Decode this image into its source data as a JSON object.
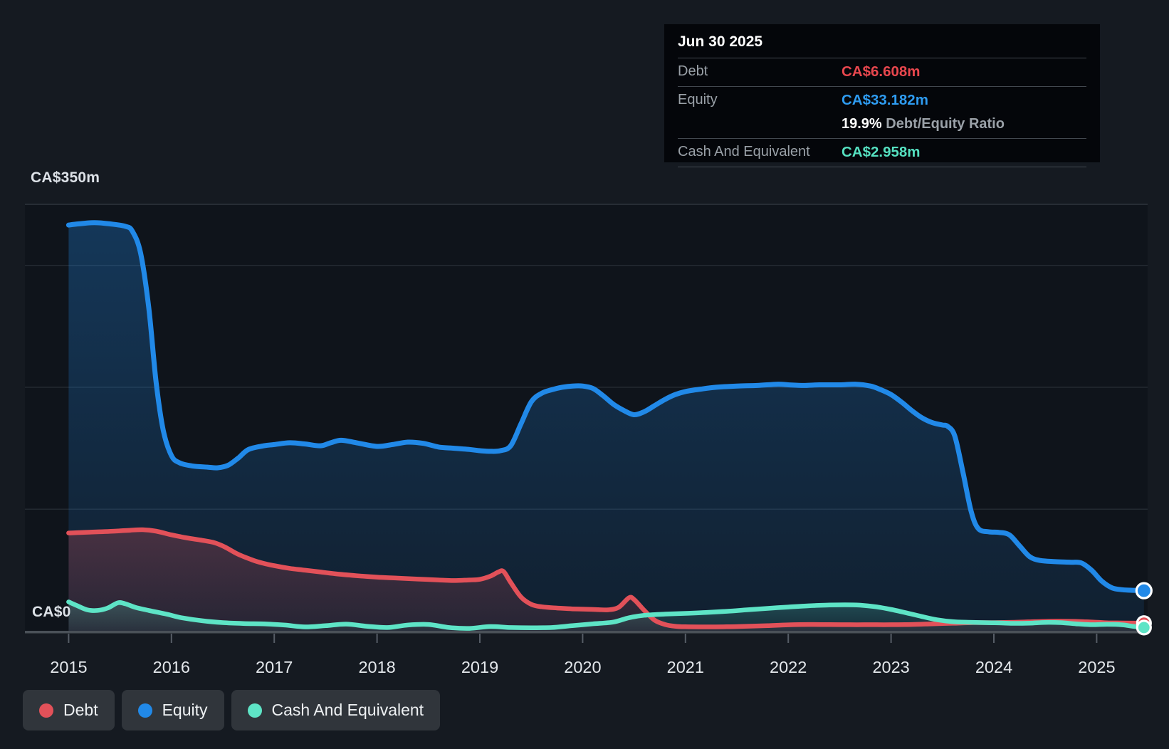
{
  "y_axis": {
    "top_label": "CA$350m",
    "zero_label": "CA$0"
  },
  "x_axis": {
    "years": [
      "2015",
      "2016",
      "2017",
      "2018",
      "2019",
      "2020",
      "2021",
      "2022",
      "2023",
      "2024",
      "2025"
    ]
  },
  "tooltip": {
    "title": "Jun 30 2025",
    "rows": [
      {
        "key": "debt",
        "label": "Debt",
        "value": "CA$6.608m"
      },
      {
        "key": "equity",
        "label": "Equity",
        "value": "CA$33.182m"
      },
      {
        "key": "cash",
        "label": "Cash And Equivalent",
        "value": "CA$2.958m"
      }
    ],
    "ratio_pct": "19.9%",
    "ratio_label": "Debt/Equity Ratio"
  },
  "legend": [
    {
      "key": "debt",
      "label": "Debt",
      "color": "#e25159"
    },
    {
      "key": "equity",
      "label": "Equity",
      "color": "#2189e8"
    },
    {
      "key": "cash",
      "label": "Cash And Equivalent",
      "color": "#5ee4c6"
    }
  ],
  "colors": {
    "page_bg": "#151a21",
    "plot_bg": "#0f141b",
    "gridline": "#262c34",
    "top_gridline": "#2e343d",
    "axis_bar": "#4a5158",
    "tick": "#565d66",
    "year_label": "#e3e7eb",
    "debt_line": "#e25159",
    "equity_line": "#2189e8",
    "cash_line": "#5ee4c6",
    "tooltip_debt": "#e8474e",
    "tooltip_equity": "#2e9bf0",
    "tooltip_cash": "#55e0c0"
  },
  "chart_data": {
    "type": "area",
    "title": "",
    "xlabel": "",
    "ylabel": "CA$ (millions)",
    "xlim": [
      2015,
      2025.6
    ],
    "ylim": [
      0,
      350
    ],
    "gridline_values": [
      0,
      100,
      200,
      300,
      350
    ],
    "x_tick_years": [
      2015,
      2016,
      2017,
      2018,
      2019,
      2020,
      2021,
      2022,
      2023,
      2024,
      2025
    ],
    "legend_position": "bottom",
    "series": [
      {
        "name": "Equity",
        "color": "#2189e8",
        "unit": "CA$m",
        "end_marker": true,
        "points": [
          [
            2015.0,
            333
          ],
          [
            2015.1,
            334
          ],
          [
            2015.25,
            335
          ],
          [
            2015.4,
            334
          ],
          [
            2015.55,
            332
          ],
          [
            2015.62,
            328
          ],
          [
            2015.7,
            310
          ],
          [
            2015.78,
            265
          ],
          [
            2015.85,
            205
          ],
          [
            2015.92,
            165
          ],
          [
            2016.0,
            144
          ],
          [
            2016.08,
            138
          ],
          [
            2016.2,
            135.5
          ],
          [
            2016.35,
            134.5
          ],
          [
            2016.45,
            134
          ],
          [
            2016.55,
            136
          ],
          [
            2016.65,
            142
          ],
          [
            2016.75,
            149
          ],
          [
            2016.9,
            152
          ],
          [
            2017.0,
            153
          ],
          [
            2017.15,
            154.5
          ],
          [
            2017.3,
            153.5
          ],
          [
            2017.45,
            152
          ],
          [
            2017.55,
            154.5
          ],
          [
            2017.65,
            156.5
          ],
          [
            2017.8,
            154.5
          ],
          [
            2018.0,
            151.5
          ],
          [
            2018.15,
            153
          ],
          [
            2018.3,
            155
          ],
          [
            2018.45,
            154
          ],
          [
            2018.6,
            151
          ],
          [
            2018.75,
            150
          ],
          [
            2018.9,
            149
          ],
          [
            2019.0,
            148
          ],
          [
            2019.1,
            147.5
          ],
          [
            2019.2,
            148
          ],
          [
            2019.3,
            152
          ],
          [
            2019.4,
            170
          ],
          [
            2019.5,
            188
          ],
          [
            2019.6,
            195
          ],
          [
            2019.7,
            198
          ],
          [
            2019.8,
            200
          ],
          [
            2019.9,
            201
          ],
          [
            2020.0,
            201
          ],
          [
            2020.1,
            199
          ],
          [
            2020.2,
            193
          ],
          [
            2020.3,
            186
          ],
          [
            2020.4,
            181
          ],
          [
            2020.5,
            177.5
          ],
          [
            2020.6,
            180
          ],
          [
            2020.7,
            185
          ],
          [
            2020.8,
            190
          ],
          [
            2020.9,
            194
          ],
          [
            2021.0,
            196.5
          ],
          [
            2021.15,
            198.5
          ],
          [
            2021.3,
            200
          ],
          [
            2021.5,
            201
          ],
          [
            2021.7,
            201.5
          ],
          [
            2021.9,
            202.5
          ],
          [
            2022.0,
            202
          ],
          [
            2022.15,
            201.5
          ],
          [
            2022.3,
            202
          ],
          [
            2022.5,
            202
          ],
          [
            2022.65,
            202.5
          ],
          [
            2022.8,
            201
          ],
          [
            2022.9,
            198
          ],
          [
            2023.0,
            194
          ],
          [
            2023.1,
            188
          ],
          [
            2023.2,
            181
          ],
          [
            2023.3,
            175
          ],
          [
            2023.4,
            171
          ],
          [
            2023.5,
            169
          ],
          [
            2023.55,
            168
          ],
          [
            2023.62,
            160
          ],
          [
            2023.7,
            130
          ],
          [
            2023.78,
            98
          ],
          [
            2023.85,
            84
          ],
          [
            2023.95,
            81.5
          ],
          [
            2024.05,
            81
          ],
          [
            2024.15,
            79
          ],
          [
            2024.25,
            70
          ],
          [
            2024.35,
            61
          ],
          [
            2024.45,
            58
          ],
          [
            2024.6,
            57
          ],
          [
            2024.75,
            56.5
          ],
          [
            2024.85,
            56
          ],
          [
            2024.95,
            50
          ],
          [
            2025.05,
            41
          ],
          [
            2025.15,
            35.5
          ],
          [
            2025.25,
            34
          ],
          [
            2025.35,
            33.5
          ],
          [
            2025.46,
            33.2
          ]
        ]
      },
      {
        "name": "Debt",
        "color": "#e25159",
        "unit": "CA$m",
        "end_marker": true,
        "points": [
          [
            2015.0,
            80.5
          ],
          [
            2015.15,
            81
          ],
          [
            2015.3,
            81.5
          ],
          [
            2015.45,
            82
          ],
          [
            2015.6,
            82.8
          ],
          [
            2015.72,
            83.2
          ],
          [
            2015.85,
            82
          ],
          [
            2016.0,
            79
          ],
          [
            2016.15,
            76.5
          ],
          [
            2016.3,
            74.5
          ],
          [
            2016.42,
            72.5
          ],
          [
            2016.52,
            69
          ],
          [
            2016.65,
            63
          ],
          [
            2016.8,
            58
          ],
          [
            2016.9,
            55.5
          ],
          [
            2017.0,
            53.7
          ],
          [
            2017.15,
            51.5
          ],
          [
            2017.3,
            50
          ],
          [
            2017.45,
            48.5
          ],
          [
            2017.6,
            47
          ],
          [
            2017.8,
            45.5
          ],
          [
            2018.0,
            44.3
          ],
          [
            2018.2,
            43.5
          ],
          [
            2018.4,
            42.7
          ],
          [
            2018.6,
            42
          ],
          [
            2018.75,
            41.5
          ],
          [
            2018.9,
            42
          ],
          [
            2019.0,
            42.5
          ],
          [
            2019.1,
            45
          ],
          [
            2019.18,
            48.5
          ],
          [
            2019.23,
            49
          ],
          [
            2019.3,
            40
          ],
          [
            2019.4,
            28
          ],
          [
            2019.5,
            22
          ],
          [
            2019.6,
            20
          ],
          [
            2019.75,
            19
          ],
          [
            2019.9,
            18.3
          ],
          [
            2020.05,
            18
          ],
          [
            2020.15,
            17.7
          ],
          [
            2020.25,
            17.5
          ],
          [
            2020.35,
            19.5
          ],
          [
            2020.45,
            27.4
          ],
          [
            2020.5,
            26
          ],
          [
            2020.6,
            17
          ],
          [
            2020.7,
            9
          ],
          [
            2020.8,
            5.5
          ],
          [
            2020.9,
            4
          ],
          [
            2021.0,
            3.6
          ],
          [
            2021.2,
            3.5
          ],
          [
            2021.4,
            3.6
          ],
          [
            2021.6,
            4
          ],
          [
            2021.8,
            4.5
          ],
          [
            2022.0,
            5.2
          ],
          [
            2022.2,
            5.5
          ],
          [
            2022.4,
            5.4
          ],
          [
            2022.6,
            5.3
          ],
          [
            2022.8,
            5.3
          ],
          [
            2023.0,
            5.3
          ],
          [
            2023.2,
            5.5
          ],
          [
            2023.4,
            6
          ],
          [
            2023.6,
            6.5
          ],
          [
            2023.8,
            7
          ],
          [
            2024.0,
            7
          ],
          [
            2024.2,
            7.3
          ],
          [
            2024.4,
            7.8
          ],
          [
            2024.6,
            8.2
          ],
          [
            2024.8,
            8
          ],
          [
            2025.0,
            7.3
          ],
          [
            2025.1,
            6.9
          ],
          [
            2025.25,
            6.7
          ],
          [
            2025.46,
            6.6
          ]
        ]
      },
      {
        "name": "Cash And Equivalent",
        "color": "#5ee4c6",
        "unit": "CA$m",
        "end_marker": true,
        "points": [
          [
            2015.0,
            24
          ],
          [
            2015.08,
            21
          ],
          [
            2015.18,
            17.5
          ],
          [
            2015.28,
            17
          ],
          [
            2015.38,
            19
          ],
          [
            2015.48,
            23.3
          ],
          [
            2015.55,
            22.5
          ],
          [
            2015.65,
            19.5
          ],
          [
            2015.78,
            17
          ],
          [
            2015.95,
            14
          ],
          [
            2016.1,
            11
          ],
          [
            2016.3,
            8.5
          ],
          [
            2016.5,
            7
          ],
          [
            2016.7,
            6.3
          ],
          [
            2016.9,
            6
          ],
          [
            2017.1,
            5
          ],
          [
            2017.3,
            3.5
          ],
          [
            2017.5,
            4.5
          ],
          [
            2017.7,
            5.8
          ],
          [
            2017.9,
            4
          ],
          [
            2018.1,
            3
          ],
          [
            2018.3,
            5
          ],
          [
            2018.5,
            5.5
          ],
          [
            2018.7,
            3
          ],
          [
            2018.9,
            2.3
          ],
          [
            2019.1,
            3.8
          ],
          [
            2019.3,
            3
          ],
          [
            2019.5,
            2.8
          ],
          [
            2019.7,
            3
          ],
          [
            2019.9,
            4.5
          ],
          [
            2020.1,
            6
          ],
          [
            2020.3,
            7.5
          ],
          [
            2020.45,
            11
          ],
          [
            2020.6,
            13
          ],
          [
            2020.8,
            14
          ],
          [
            2021.0,
            14.6
          ],
          [
            2021.2,
            15.3
          ],
          [
            2021.4,
            16.3
          ],
          [
            2021.6,
            17.5
          ],
          [
            2021.8,
            18.7
          ],
          [
            2022.0,
            19.8
          ],
          [
            2022.2,
            20.8
          ],
          [
            2022.4,
            21.4
          ],
          [
            2022.55,
            21.6
          ],
          [
            2022.7,
            21.3
          ],
          [
            2022.85,
            20
          ],
          [
            2023.0,
            17.8
          ],
          [
            2023.15,
            15
          ],
          [
            2023.3,
            12
          ],
          [
            2023.45,
            9.3
          ],
          [
            2023.6,
            7.8
          ],
          [
            2023.75,
            7.3
          ],
          [
            2023.9,
            7
          ],
          [
            2024.05,
            6.8
          ],
          [
            2024.2,
            6.4
          ],
          [
            2024.35,
            6.6
          ],
          [
            2024.5,
            7.2
          ],
          [
            2024.65,
            7
          ],
          [
            2024.8,
            6
          ],
          [
            2024.95,
            5.3
          ],
          [
            2025.1,
            5.6
          ],
          [
            2025.25,
            5.2
          ],
          [
            2025.35,
            4
          ],
          [
            2025.46,
            2.96
          ]
        ]
      }
    ]
  }
}
